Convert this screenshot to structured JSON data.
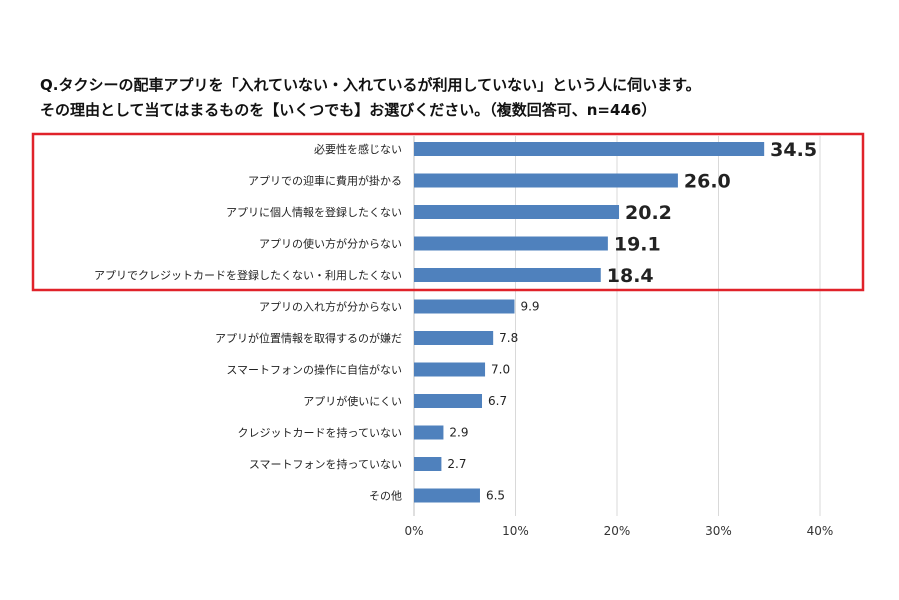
{
  "question": {
    "line1": "Q.タクシーの配車アプリを「入れていない・入れているが利用していない」という人に伺います。",
    "line2": "その理由として当てはまるものを【いくつでも】お選びください。（複数回答可、n=446）"
  },
  "chart_data": {
    "type": "bar",
    "orientation": "horizontal",
    "categories": [
      "必要性を感じない",
      "アプリでの迎車に費用が掛かる",
      "アプリに個人情報を登録したくない",
      "アプリの使い方が分からない",
      "アプリでクレジットカードを登録したくない・利用したくない",
      "アプリの入れ方が分からない",
      "アプリが位置情報を取得するのが嫌だ",
      "スマートフォンの操作に自信がない",
      "アプリが使いにくい",
      "クレジットカードを持っていない",
      "スマートフォンを持っていない",
      "その他"
    ],
    "values": [
      34.5,
      26.0,
      20.2,
      19.1,
      18.4,
      9.9,
      7.8,
      7.0,
      6.7,
      2.9,
      2.7,
      6.5
    ],
    "value_labels": [
      "34.5",
      "26.0",
      "20.2",
      "19.1",
      "18.4",
      "9.9",
      "7.8",
      "7.0",
      "6.7",
      "2.9",
      "2.7",
      "6.5"
    ],
    "x_ticks": [
      "0%",
      "10%",
      "20%",
      "30%",
      "40%"
    ],
    "xlim": [
      0,
      40
    ],
    "grid": true,
    "highlighted_top": 5,
    "colors": {
      "bar": "#4f81bd",
      "highlight_box": "#e0222a",
      "grid": "#d9d9d9"
    }
  }
}
